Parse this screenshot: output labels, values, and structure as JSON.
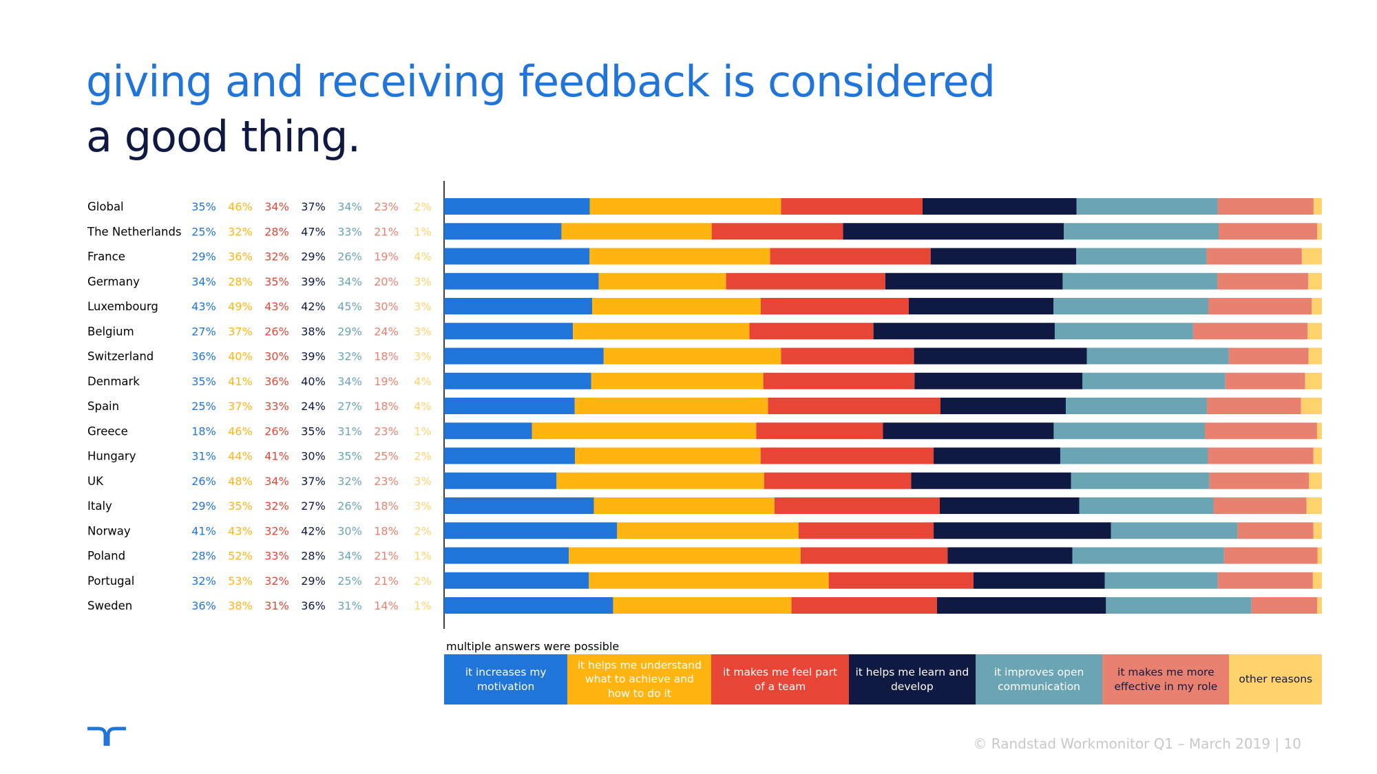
{
  "title": {
    "line1": "giving and receiving feedback is considered",
    "line2": "a good thing."
  },
  "chart_data": {
    "type": "bar",
    "orientation": "horizontal",
    "stacked": true,
    "categories": [
      "Global",
      "The Netherlands",
      "France",
      "Germany",
      "Luxembourg",
      "Belgium",
      "Switzerland",
      "Denmark",
      "Spain",
      "Greece",
      "Hungary",
      "UK",
      "Italy",
      "Norway",
      "Poland",
      "Portugal",
      "Sweden"
    ],
    "series": [
      {
        "name": "it increases my motivation",
        "color": "#2175d9",
        "text_color": "#ffffff",
        "values": [
          35,
          25,
          29,
          34,
          43,
          27,
          36,
          35,
          25,
          18,
          31,
          26,
          29,
          41,
          28,
          32,
          36
        ]
      },
      {
        "name": "it helps me understand what to achieve and how to do it",
        "color": "#ffb511",
        "text_color": "#ffffff",
        "values": [
          46,
          32,
          36,
          28,
          49,
          37,
          40,
          41,
          37,
          46,
          44,
          48,
          35,
          43,
          52,
          53,
          38
        ]
      },
      {
        "name": "it makes me feel part of a team",
        "color": "#e74536",
        "text_color": "#ffffff",
        "values": [
          34,
          28,
          32,
          35,
          43,
          26,
          30,
          36,
          33,
          26,
          41,
          34,
          32,
          32,
          33,
          32,
          31
        ]
      },
      {
        "name": "it helps me learn and develop",
        "color": "#0f1941",
        "text_color": "#ffffff",
        "values": [
          37,
          47,
          29,
          39,
          42,
          38,
          39,
          40,
          24,
          35,
          30,
          37,
          27,
          42,
          28,
          29,
          36
        ]
      },
      {
        "name": "it improves open communication",
        "color": "#6ba5b4",
        "text_color": "#ffffff",
        "values": [
          34,
          33,
          26,
          34,
          45,
          29,
          32,
          34,
          27,
          31,
          35,
          32,
          26,
          30,
          34,
          25,
          31
        ]
      },
      {
        "name": "it makes me more effective in my role",
        "color": "#e88170",
        "text_color": "#0f1941",
        "values": [
          23,
          21,
          19,
          20,
          30,
          24,
          18,
          19,
          18,
          23,
          25,
          23,
          18,
          18,
          21,
          21,
          14
        ]
      },
      {
        "name": "other reasons",
        "color": "#ffd26e",
        "text_color": "#0f1941",
        "values": [
          2,
          1,
          4,
          3,
          3,
          3,
          3,
          4,
          4,
          1,
          2,
          3,
          3,
          2,
          1,
          2,
          1
        ]
      }
    ],
    "value_suffix": "%",
    "legend_placement": "bottom",
    "note": "multiple answers were possible"
  },
  "footer": {
    "text": "© Randstad Workmonitor Q1 – March 2019  |  10"
  },
  "logo_icon": "randstad-logo-icon"
}
